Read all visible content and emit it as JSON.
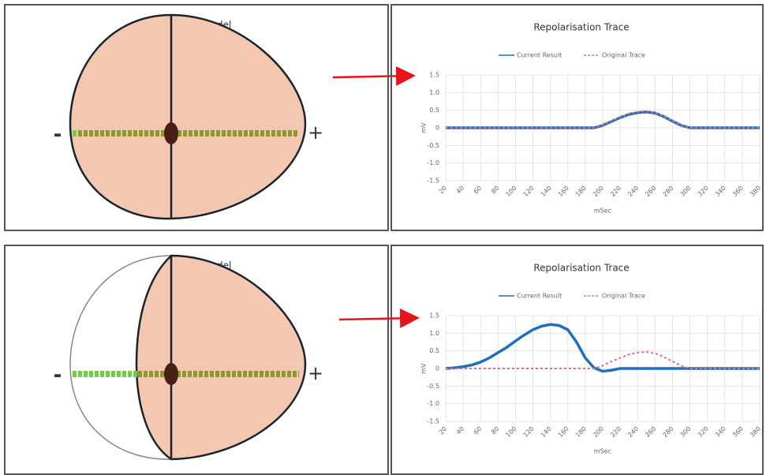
{
  "egg_models": [
    {
      "title": "Egg Model",
      "minus_label": "-",
      "plus_label": "+"
    },
    {
      "title": "Egg Model",
      "minus_label": "-",
      "plus_label": "+"
    }
  ],
  "chart_data": [
    {
      "type": "line",
      "title": "Repolarisation Trace",
      "xlabel": "mSec",
      "ylabel": "mV",
      "x": [
        20,
        30,
        40,
        50,
        60,
        70,
        80,
        90,
        100,
        110,
        120,
        130,
        140,
        150,
        160,
        170,
        180,
        190,
        200,
        210,
        220,
        230,
        240,
        250,
        260,
        270,
        280,
        290,
        300,
        310,
        320,
        330,
        340,
        350,
        360,
        370,
        380
      ],
      "series": [
        {
          "name": "Current Result",
          "color": "#1f6fbf",
          "values": [
            0,
            0,
            0,
            0,
            0,
            0,
            0,
            0,
            0,
            0,
            0,
            0,
            0,
            0,
            0,
            0,
            0,
            0,
            0.07,
            0.18,
            0.29,
            0.38,
            0.43,
            0.45,
            0.42,
            0.32,
            0.19,
            0.07,
            0,
            0,
            0,
            0,
            0,
            0,
            0,
            0,
            0
          ]
        },
        {
          "name": "Original Trace",
          "color": "#e07078",
          "dashed": true,
          "values": [
            0,
            0,
            0,
            0,
            0,
            0,
            0,
            0,
            0,
            0,
            0,
            0,
            0,
            0,
            0,
            0,
            0,
            0,
            0.08,
            0.2,
            0.3,
            0.4,
            0.45,
            0.47,
            0.43,
            0.33,
            0.2,
            0.08,
            0,
            0,
            0,
            0,
            0,
            0,
            0,
            0,
            0
          ]
        }
      ],
      "xlim": [
        20,
        380
      ],
      "xticks": [
        20,
        40,
        60,
        80,
        100,
        120,
        140,
        160,
        180,
        200,
        220,
        240,
        260,
        280,
        300,
        320,
        340,
        360,
        380
      ],
      "ylim": [
        -1.5,
        1.5
      ],
      "yticks": [
        1.5,
        {
          "value": 1,
          "label": "1.0"
        },
        0.5,
        0,
        -0.5,
        {
          "value": -1,
          "label": "-1.0"
        },
        -1.5
      ],
      "grid": true,
      "legend": "top"
    },
    {
      "type": "line",
      "title": "Repolarisation Trace",
      "xlabel": "mSec",
      "ylabel": "mV",
      "x": [
        20,
        30,
        40,
        50,
        60,
        70,
        80,
        90,
        100,
        110,
        120,
        130,
        140,
        150,
        160,
        170,
        180,
        190,
        200,
        210,
        220,
        230,
        240,
        250,
        260,
        270,
        280,
        290,
        300,
        310,
        320,
        330,
        340,
        350,
        360,
        370,
        380
      ],
      "series": [
        {
          "name": "Current Result",
          "color": "#1f6fbf",
          "values": [
            0,
            0.02,
            0.05,
            0.1,
            0.18,
            0.3,
            0.45,
            0.6,
            0.78,
            0.95,
            1.1,
            1.2,
            1.25,
            1.22,
            1.1,
            0.75,
            0.3,
            0.02,
            -0.08,
            -0.05,
            0,
            0,
            0,
            0,
            0,
            0,
            0,
            0,
            0,
            0,
            0,
            0,
            0,
            0,
            0,
            0,
            0
          ]
        },
        {
          "name": "Original Trace",
          "color": "#e07078",
          "dashed": true,
          "values": [
            0,
            0,
            0,
            0,
            0,
            0,
            0,
            0,
            0,
            0,
            0,
            0,
            0,
            0,
            0,
            0,
            0,
            0,
            0.08,
            0.2,
            0.3,
            0.4,
            0.45,
            0.47,
            0.43,
            0.33,
            0.2,
            0.08,
            0,
            0,
            0,
            0,
            0,
            0,
            0,
            0,
            0
          ]
        }
      ],
      "xlim": [
        20,
        380
      ],
      "xticks": [
        20,
        40,
        60,
        80,
        100,
        120,
        140,
        160,
        180,
        200,
        220,
        240,
        260,
        280,
        300,
        320,
        340,
        360,
        380
      ],
      "ylim": [
        -1.5,
        1.5
      ],
      "yticks": [
        1.5,
        {
          "value": 1,
          "label": "1.0"
        },
        0.5,
        0,
        -0.5,
        {
          "value": -1,
          "label": "-1.0"
        },
        -1.5
      ],
      "grid": true,
      "legend": "top"
    }
  ]
}
